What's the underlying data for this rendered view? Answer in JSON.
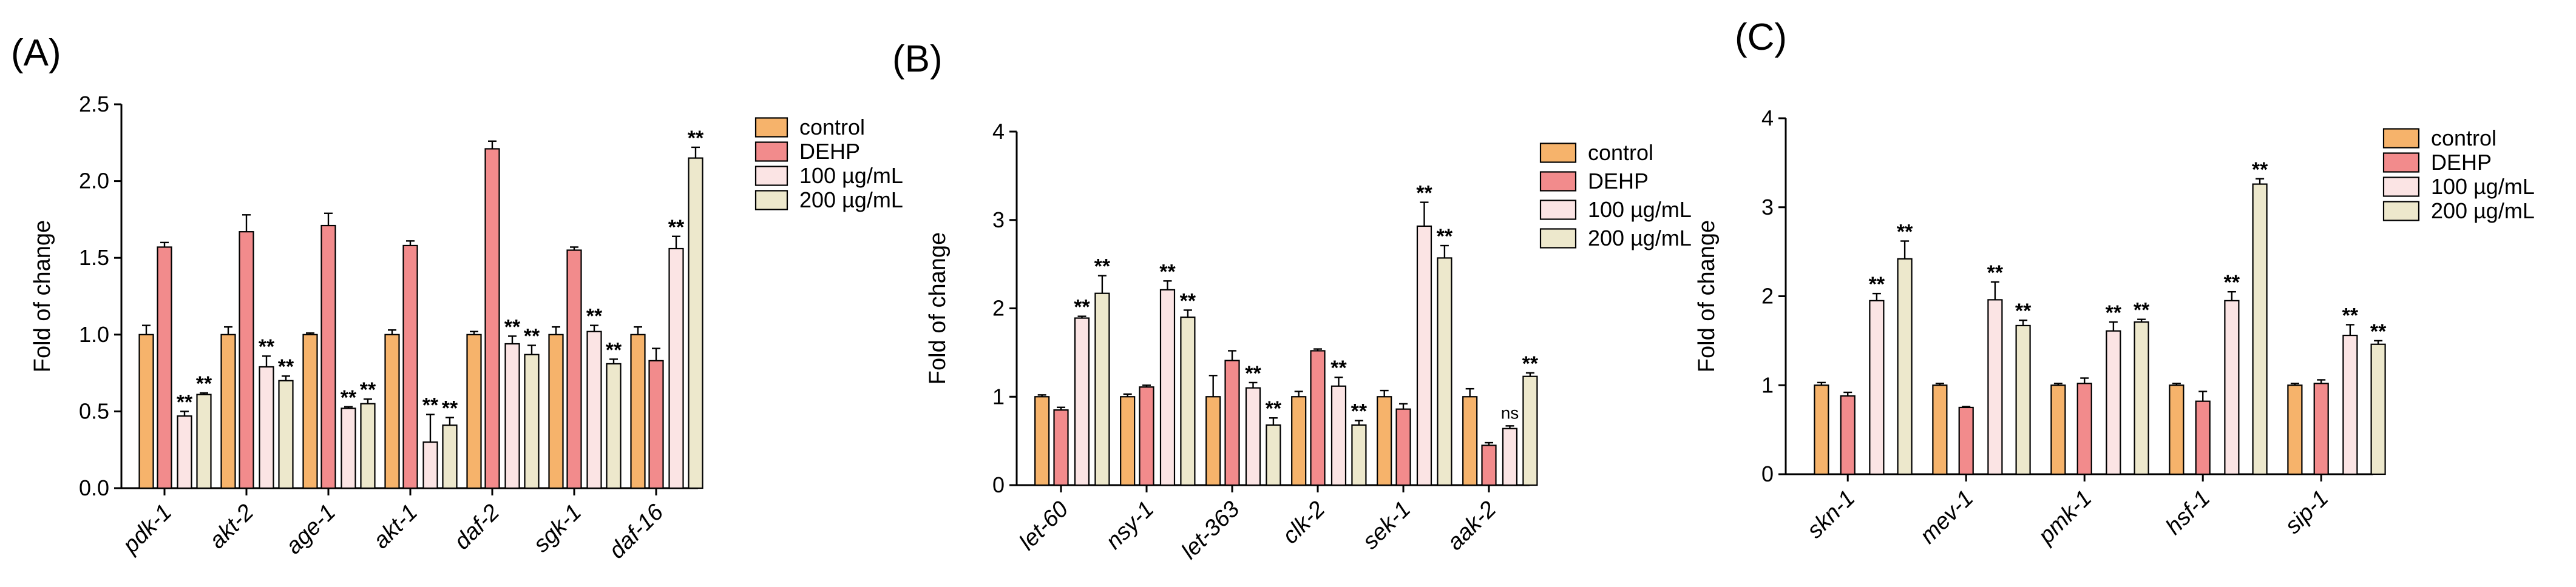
{
  "colors": {
    "control": "#F6B36B",
    "DEHP": "#F28B8C",
    "100 µg/mL": "#FBE4E4",
    "200 µg/mL": "#EDE8CC",
    "axis": "#000000"
  },
  "chart_data": [
    {
      "panel_label": "(A)",
      "type": "bar",
      "ylabel": "Fold of change",
      "ylim": [
        0,
        2.5
      ],
      "yticks": [
        "0.0",
        "0.5",
        "1.0",
        "1.5",
        "2.0",
        "2.5"
      ],
      "legend": [
        "control",
        "DEHP",
        "100 µg/mL",
        "200 µg/mL"
      ],
      "legend_position": "top-right",
      "categories": [
        "pdk-1",
        "akt-2",
        "age-1",
        "akt-1",
        "daf-2",
        "sgk-1",
        "daf-16"
      ],
      "series": [
        {
          "name": "control",
          "values": [
            1.0,
            1.0,
            1.0,
            1.0,
            1.0,
            1.0,
            1.0
          ],
          "errors": [
            0.06,
            0.05,
            0.01,
            0.03,
            0.02,
            0.05,
            0.05
          ],
          "sig": [
            "",
            "",
            "",
            "",
            "",
            "",
            ""
          ]
        },
        {
          "name": "DEHP",
          "values": [
            1.57,
            1.67,
            1.71,
            1.58,
            2.21,
            1.55,
            0.83
          ],
          "errors": [
            0.03,
            0.11,
            0.08,
            0.03,
            0.05,
            0.02,
            0.08
          ],
          "sig": [
            "",
            "",
            "",
            "",
            "",
            "",
            ""
          ]
        },
        {
          "name": "100 µg/mL",
          "values": [
            0.47,
            0.79,
            0.52,
            0.3,
            0.94,
            1.02,
            1.56
          ],
          "errors": [
            0.03,
            0.07,
            0.01,
            0.18,
            0.05,
            0.04,
            0.08
          ],
          "sig": [
            "**",
            "**",
            "**",
            "**",
            "**",
            "**",
            "**"
          ]
        },
        {
          "name": "200 µg/mL",
          "values": [
            0.61,
            0.7,
            0.55,
            0.41,
            0.87,
            0.81,
            2.15
          ],
          "errors": [
            0.01,
            0.03,
            0.03,
            0.05,
            0.06,
            0.03,
            0.07
          ],
          "sig": [
            "**",
            "**",
            "**",
            "**",
            "**",
            "**",
            "**"
          ]
        }
      ]
    },
    {
      "panel_label": "(B)",
      "type": "bar",
      "ylabel": "Fold of change",
      "ylim": [
        0,
        4
      ],
      "yticks": [
        "0",
        "1",
        "2",
        "3",
        "4"
      ],
      "legend": [
        "control",
        "DEHP",
        "100 µg/mL",
        "200 µg/mL"
      ],
      "legend_position": "top-right",
      "categories": [
        "let-60",
        "nsy-1",
        "let-363",
        "clk-2",
        "sek-1",
        "aak-2"
      ],
      "series": [
        {
          "name": "control",
          "values": [
            1.0,
            1.0,
            1.0,
            1.0,
            1.0,
            1.0
          ],
          "errors": [
            0.02,
            0.03,
            0.24,
            0.06,
            0.07,
            0.09
          ],
          "sig": [
            "",
            "",
            "",
            "",
            "",
            ""
          ]
        },
        {
          "name": "DEHP",
          "values": [
            0.85,
            1.11,
            1.41,
            1.52,
            0.86,
            0.45
          ],
          "errors": [
            0.03,
            0.02,
            0.11,
            0.02,
            0.06,
            0.03
          ],
          "sig": [
            "",
            "",
            "",
            "",
            "",
            ""
          ]
        },
        {
          "name": "100 µg/mL",
          "values": [
            1.89,
            2.21,
            1.1,
            1.12,
            2.93,
            0.64
          ],
          "errors": [
            0.02,
            0.1,
            0.06,
            0.1,
            0.27,
            0.03
          ],
          "sig": [
            "**",
            "**",
            "**",
            "**",
            "**",
            "ns"
          ]
        },
        {
          "name": "200 µg/mL",
          "values": [
            2.17,
            1.9,
            0.68,
            0.68,
            2.57,
            1.23
          ],
          "errors": [
            0.2,
            0.08,
            0.08,
            0.05,
            0.14,
            0.04
          ],
          "sig": [
            "**",
            "**",
            "**",
            "**",
            "**",
            "**"
          ]
        }
      ]
    },
    {
      "panel_label": "(C)",
      "type": "bar",
      "ylabel": "Fold of change",
      "ylim": [
        0,
        4
      ],
      "yticks": [
        "0",
        "1",
        "2",
        "3",
        "4"
      ],
      "legend": [
        "control",
        "DEHP",
        "100 µg/mL",
        "200 µg/mL"
      ],
      "legend_position": "top-right",
      "categories": [
        "skn-1",
        "mev-1",
        "pmk-1",
        "hsf-1",
        "sip-1"
      ],
      "series": [
        {
          "name": "control",
          "values": [
            1.0,
            1.0,
            1.0,
            1.0,
            1.0
          ],
          "errors": [
            0.03,
            0.02,
            0.02,
            0.02,
            0.02
          ],
          "sig": [
            "",
            "",
            "",
            "",
            ""
          ]
        },
        {
          "name": "DEHP",
          "values": [
            0.88,
            0.75,
            1.02,
            0.82,
            1.02
          ],
          "errors": [
            0.04,
            0.01,
            0.06,
            0.11,
            0.04
          ],
          "sig": [
            "",
            "",
            "",
            "",
            ""
          ]
        },
        {
          "name": "100 µg/mL",
          "values": [
            1.95,
            1.96,
            1.61,
            1.95,
            1.56
          ],
          "errors": [
            0.08,
            0.2,
            0.1,
            0.1,
            0.12
          ],
          "sig": [
            "**",
            "**",
            "**",
            "**",
            "**"
          ]
        },
        {
          "name": "200 µg/mL",
          "values": [
            2.42,
            1.67,
            1.71,
            3.26,
            1.46
          ],
          "errors": [
            0.2,
            0.06,
            0.03,
            0.06,
            0.04
          ],
          "sig": [
            "**",
            "**",
            "**",
            "**",
            "**"
          ]
        }
      ]
    }
  ]
}
